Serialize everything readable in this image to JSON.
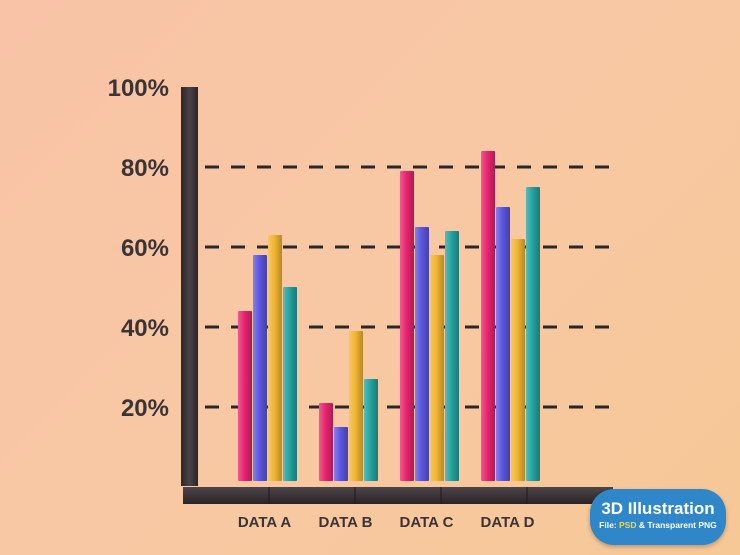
{
  "chart_data": {
    "type": "bar",
    "categories": [
      "DATA A",
      "DATA B",
      "DATA C",
      "DATA D"
    ],
    "series": [
      {
        "values": [
          44,
          21,
          79,
          84
        ],
        "color": "#e8246f"
      },
      {
        "values": [
          58,
          15,
          65,
          70
        ],
        "color": "#5b56e0"
      },
      {
        "values": [
          63,
          39,
          58,
          62
        ],
        "color": "#f1b531"
      },
      {
        "values": [
          50,
          27,
          64,
          75
        ],
        "color": "#23a3a0"
      }
    ],
    "yticks": [
      "20%",
      "40%",
      "60%",
      "80%",
      "100%"
    ],
    "ylim": [
      0,
      100
    ],
    "grid": "dashed at 20, 40, 60, 80",
    "axis_color": "#3d383b"
  },
  "badge": {
    "title": "3D Illustration",
    "sub_prefix": "File: ",
    "sub_psd": "PSD",
    "sub_suffix": " & Transparent PNG"
  }
}
